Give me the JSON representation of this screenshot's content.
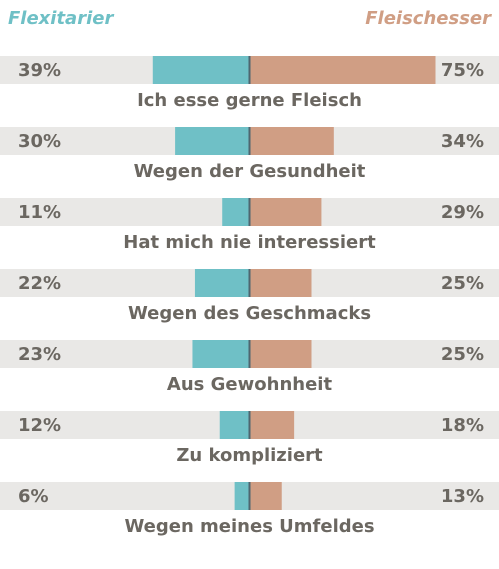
{
  "chart_data": {
    "type": "bar",
    "legend": {
      "left": "Flexitarier",
      "right": "Fleischesser"
    },
    "colors": {
      "left": "#6fc0c6",
      "right": "#d09e84",
      "track": "#e9e8e6",
      "divider": "#4e6670",
      "text": "#6b6761"
    },
    "axis_max": 100,
    "categories": [
      "Ich esse gerne Fleisch",
      "Wegen der Gesundheit",
      "Hat mich nie interessiert",
      "Wegen des Geschmacks",
      "Aus Gewohnheit",
      "Zu kompliziert",
      "Wegen meines Umfeldes"
    ],
    "series": [
      {
        "name": "Flexitarier",
        "values": [
          39,
          30,
          11,
          22,
          23,
          12,
          6
        ]
      },
      {
        "name": "Fleischesser",
        "values": [
          75,
          34,
          29,
          25,
          25,
          18,
          13
        ]
      }
    ],
    "left_labels": [
      "39%",
      "30%",
      "11%",
      "22%",
      "23%",
      "12%",
      "6%"
    ],
    "right_labels": [
      "75%",
      "34%",
      "29%",
      "25%",
      "25%",
      "18%",
      "13%"
    ]
  }
}
